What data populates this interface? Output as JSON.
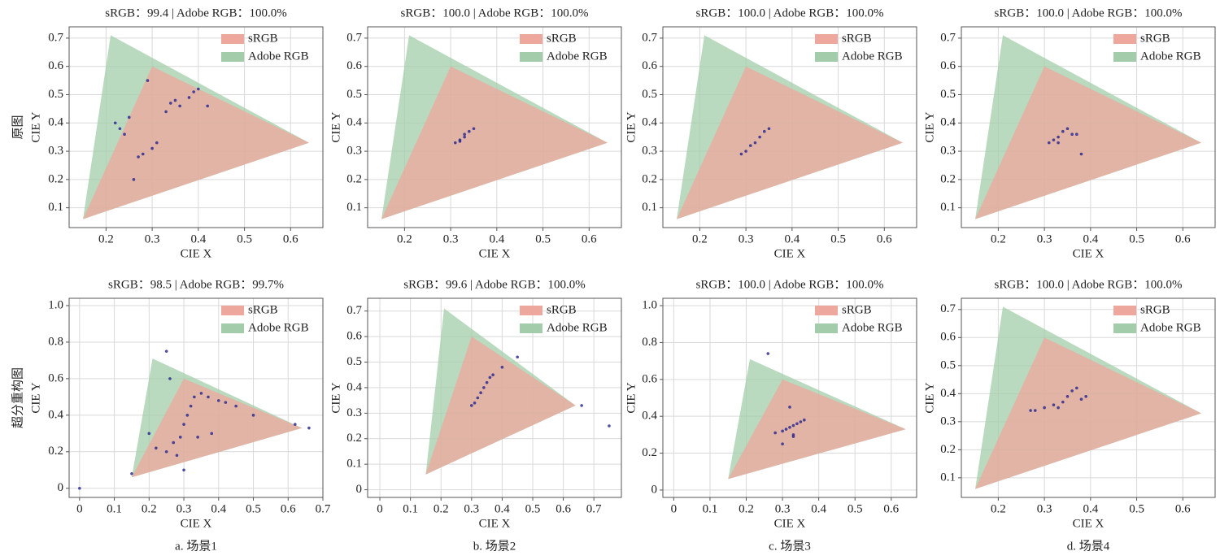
{
  "chart_data": [
    {
      "type": "scatter",
      "title": "sRGB：99.4 | Adobe RGB：100.0%",
      "row_label": "原图",
      "xlabel": "CIE X",
      "ylabel": "CIE Y",
      "legend": "upper right",
      "grid": true,
      "xlim": [
        0.12,
        0.67
      ],
      "xticks": [
        0.2,
        0.3,
        0.4,
        0.5,
        0.6
      ],
      "ylim": [
        0.03,
        0.74
      ],
      "yticks": [
        0.1,
        0.2,
        0.3,
        0.4,
        0.5,
        0.6,
        0.7
      ],
      "series": [
        {
          "name": "sRGB",
          "color": "#eea79c",
          "x": [
            0.64,
            0.3,
            0.15
          ],
          "y": [
            0.33,
            0.6,
            0.06
          ]
        },
        {
          "name": "Adobe RGB",
          "color": "#a3cdaa",
          "x": [
            0.64,
            0.21,
            0.15
          ],
          "y": [
            0.33,
            0.71,
            0.06
          ]
        },
        {
          "color": "#23238f",
          "x": [
            0.22,
            0.23,
            0.25,
            0.27,
            0.28,
            0.3,
            0.31,
            0.33,
            0.34,
            0.35,
            0.36,
            0.38,
            0.39,
            0.4,
            0.24,
            0.42,
            0.29,
            0.26
          ],
          "y": [
            0.4,
            0.38,
            0.42,
            0.28,
            0.29,
            0.31,
            0.33,
            0.44,
            0.47,
            0.48,
            0.46,
            0.49,
            0.51,
            0.52,
            0.36,
            0.46,
            0.55,
            0.2
          ]
        }
      ]
    },
    {
      "type": "scatter",
      "title": "sRGB：100.0 | Adobe RGB：100.0%",
      "xlabel": "CIE X",
      "ylabel": "CIE Y",
      "legend": "upper right",
      "grid": true,
      "xlim": [
        0.12,
        0.67
      ],
      "xticks": [
        0.2,
        0.3,
        0.4,
        0.5,
        0.6
      ],
      "ylim": [
        0.03,
        0.74
      ],
      "yticks": [
        0.1,
        0.2,
        0.3,
        0.4,
        0.5,
        0.6,
        0.7
      ],
      "series": [
        {
          "name": "sRGB",
          "color": "#eea79c",
          "x": [
            0.64,
            0.3,
            0.15
          ],
          "y": [
            0.33,
            0.6,
            0.06
          ]
        },
        {
          "name": "Adobe RGB",
          "color": "#a3cdaa",
          "x": [
            0.64,
            0.21,
            0.15
          ],
          "y": [
            0.33,
            0.71,
            0.06
          ]
        },
        {
          "color": "#23238f",
          "x": [
            0.31,
            0.32,
            0.33,
            0.34,
            0.35,
            0.32,
            0.33
          ],
          "y": [
            0.33,
            0.34,
            0.35,
            0.37,
            0.38,
            0.335,
            0.36
          ]
        }
      ]
    },
    {
      "type": "scatter",
      "title": "sRGB：100.0 | Adobe RGB：100.0%",
      "xlabel": "CIE X",
      "ylabel": "CIE Y",
      "legend": "upper right",
      "grid": true,
      "xlim": [
        0.12,
        0.67
      ],
      "xticks": [
        0.2,
        0.3,
        0.4,
        0.5,
        0.6
      ],
      "ylim": [
        0.03,
        0.74
      ],
      "yticks": [
        0.1,
        0.2,
        0.3,
        0.4,
        0.5,
        0.6,
        0.7
      ],
      "series": [
        {
          "name": "sRGB",
          "color": "#eea79c",
          "x": [
            0.64,
            0.3,
            0.15
          ],
          "y": [
            0.33,
            0.6,
            0.06
          ]
        },
        {
          "name": "Adobe RGB",
          "color": "#a3cdaa",
          "x": [
            0.64,
            0.21,
            0.15
          ],
          "y": [
            0.33,
            0.71,
            0.06
          ]
        },
        {
          "color": "#23238f",
          "x": [
            0.29,
            0.3,
            0.31,
            0.32,
            0.33,
            0.34,
            0.35
          ],
          "y": [
            0.29,
            0.3,
            0.32,
            0.33,
            0.35,
            0.37,
            0.38
          ]
        }
      ]
    },
    {
      "type": "scatter",
      "title": "sRGB：100.0 | Adobe RGB：100.0%",
      "xlabel": "CIE X",
      "ylabel": "CIE Y",
      "legend": "upper right",
      "grid": true,
      "xlim": [
        0.12,
        0.67
      ],
      "xticks": [
        0.2,
        0.3,
        0.4,
        0.5,
        0.6
      ],
      "ylim": [
        0.03,
        0.74
      ],
      "yticks": [
        0.1,
        0.2,
        0.3,
        0.4,
        0.5,
        0.6,
        0.7
      ],
      "series": [
        {
          "name": "sRGB",
          "color": "#eea79c",
          "x": [
            0.64,
            0.3,
            0.15
          ],
          "y": [
            0.33,
            0.6,
            0.06
          ]
        },
        {
          "name": "Adobe RGB",
          "color": "#a3cdaa",
          "x": [
            0.64,
            0.21,
            0.15
          ],
          "y": [
            0.33,
            0.71,
            0.06
          ]
        },
        {
          "color": "#23238f",
          "x": [
            0.31,
            0.32,
            0.33,
            0.34,
            0.35,
            0.36,
            0.37,
            0.33,
            0.38
          ],
          "y": [
            0.33,
            0.34,
            0.35,
            0.37,
            0.38,
            0.36,
            0.36,
            0.33,
            0.29
          ]
        }
      ]
    },
    {
      "type": "scatter",
      "title": "sRGB：98.5 | Adobe RGB：99.7%",
      "row_label": "超分重构图",
      "caption": "a. 场景1",
      "xlabel": "CIE X",
      "ylabel": "CIE Y",
      "legend": "upper right",
      "grid": true,
      "xlim": [
        -0.03,
        0.7
      ],
      "xticks": [
        0,
        0.1,
        0.2,
        0.3,
        0.4,
        0.5,
        0.6,
        0.7
      ],
      "ylim": [
        -0.05,
        1.04
      ],
      "yticks": [
        0,
        0.2,
        0.4,
        0.6,
        0.8,
        {
          "value": 1,
          "label": "1.0"
        }
      ],
      "series": [
        {
          "name": "sRGB",
          "color": "#eea79c",
          "x": [
            0.64,
            0.3,
            0.15
          ],
          "y": [
            0.33,
            0.6,
            0.06
          ]
        },
        {
          "name": "Adobe RGB",
          "color": "#a3cdaa",
          "x": [
            0.64,
            0.21,
            0.15
          ],
          "y": [
            0.33,
            0.71,
            0.06
          ]
        },
        {
          "color": "#23238f",
          "x": [
            0.2,
            0.22,
            0.25,
            0.27,
            0.29,
            0.3,
            0.31,
            0.32,
            0.33,
            0.35,
            0.37,
            0.4,
            0.42,
            0.45,
            0.28,
            0.3,
            0.34,
            0.38,
            0.15,
            0.5,
            0.62,
            0.66,
            0.25,
            0.26,
            0.0
          ],
          "y": [
            0.3,
            0.22,
            0.2,
            0.25,
            0.28,
            0.35,
            0.4,
            0.45,
            0.5,
            0.52,
            0.5,
            0.48,
            0.47,
            0.45,
            0.18,
            0.1,
            0.28,
            0.3,
            0.08,
            0.4,
            0.35,
            0.33,
            0.75,
            0.6,
            0.0
          ]
        }
      ]
    },
    {
      "type": "scatter",
      "title": "sRGB：99.6 | Adobe RGB：100.0%",
      "caption": "b. 场景2",
      "xlabel": "CIE X",
      "ylabel": "CIE Y",
      "legend": "upper right",
      "grid": true,
      "xlim": [
        -0.04,
        0.79
      ],
      "xticks": [
        0,
        0.1,
        0.2,
        0.3,
        0.4,
        0.5,
        0.6,
        0.7
      ],
      "ylim": [
        -0.03,
        0.75
      ],
      "yticks": [
        0,
        0.1,
        0.2,
        0.3,
        0.4,
        0.5,
        0.6,
        0.7
      ],
      "series": [
        {
          "name": "sRGB",
          "color": "#eea79c",
          "x": [
            0.64,
            0.3,
            0.15
          ],
          "y": [
            0.33,
            0.6,
            0.06
          ]
        },
        {
          "name": "Adobe RGB",
          "color": "#a3cdaa",
          "x": [
            0.64,
            0.21,
            0.15
          ],
          "y": [
            0.33,
            0.71,
            0.06
          ]
        },
        {
          "color": "#23238f",
          "x": [
            0.3,
            0.31,
            0.32,
            0.33,
            0.34,
            0.35,
            0.36,
            0.37,
            0.4,
            0.45,
            0.66,
            0.75
          ],
          "y": [
            0.33,
            0.34,
            0.36,
            0.38,
            0.4,
            0.42,
            0.44,
            0.45,
            0.48,
            0.52,
            0.33,
            0.25
          ]
        }
      ]
    },
    {
      "type": "scatter",
      "title": "sRGB：100.0 | Adobe RGB：100.0%",
      "caption": "c. 场景3",
      "xlabel": "CIE X",
      "ylabel": "CIE Y",
      "legend": "upper right",
      "grid": true,
      "xlim": [
        -0.03,
        0.67
      ],
      "xticks": [
        0,
        0.1,
        0.2,
        0.3,
        0.4,
        0.5,
        0.6
      ],
      "ylim": [
        -0.04,
        1.04
      ],
      "yticks": [
        0,
        0.2,
        0.4,
        0.6,
        0.8,
        {
          "value": 1,
          "label": "1.0"
        }
      ],
      "series": [
        {
          "name": "sRGB",
          "color": "#eea79c",
          "x": [
            0.64,
            0.3,
            0.15
          ],
          "y": [
            0.33,
            0.6,
            0.06
          ]
        },
        {
          "name": "Adobe RGB",
          "color": "#a3cdaa",
          "x": [
            0.64,
            0.21,
            0.15
          ],
          "y": [
            0.33,
            0.71,
            0.06
          ]
        },
        {
          "color": "#23238f",
          "x": [
            0.28,
            0.3,
            0.31,
            0.32,
            0.33,
            0.34,
            0.35,
            0.36,
            0.32,
            0.33,
            0.26,
            0.3,
            0.33
          ],
          "y": [
            0.31,
            0.32,
            0.33,
            0.34,
            0.35,
            0.36,
            0.37,
            0.38,
            0.45,
            0.29,
            0.74,
            0.25,
            0.3
          ]
        }
      ]
    },
    {
      "type": "scatter",
      "title": "sRGB：100.0 | Adobe RGB：100.0%",
      "caption": "d. 场景4",
      "xlabel": "CIE X",
      "ylabel": "CIE Y",
      "legend": "upper right",
      "grid": true,
      "xlim": [
        0.12,
        0.67
      ],
      "xticks": [
        0.2,
        0.3,
        0.4,
        0.5,
        0.6
      ],
      "ylim": [
        0.03,
        0.74
      ],
      "yticks": [
        0.1,
        0.2,
        0.3,
        0.4,
        0.5,
        0.6,
        0.7
      ],
      "series": [
        {
          "name": "sRGB",
          "color": "#eea79c",
          "x": [
            0.64,
            0.3,
            0.15
          ],
          "y": [
            0.33,
            0.6,
            0.06
          ]
        },
        {
          "name": "Adobe RGB",
          "color": "#a3cdaa",
          "x": [
            0.64,
            0.21,
            0.15
          ],
          "y": [
            0.33,
            0.71,
            0.06
          ]
        },
        {
          "color": "#23238f",
          "x": [
            0.27,
            0.28,
            0.3,
            0.32,
            0.33,
            0.34,
            0.35,
            0.36,
            0.37,
            0.38,
            0.39
          ],
          "y": [
            0.34,
            0.34,
            0.35,
            0.36,
            0.35,
            0.37,
            0.39,
            0.41,
            0.42,
            0.38,
            0.39
          ]
        }
      ]
    }
  ]
}
